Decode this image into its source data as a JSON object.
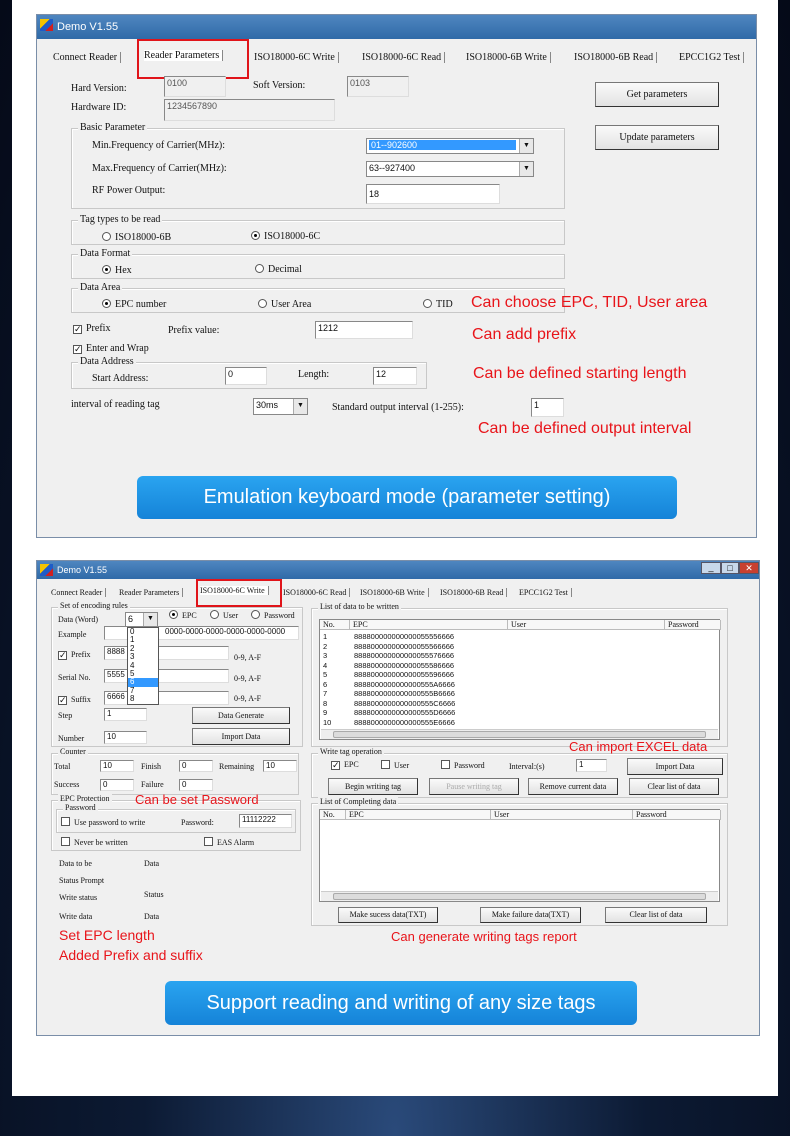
{
  "win1": {
    "title": "Demo V1.55",
    "tabs": [
      "Connect Reader",
      "Reader Parameters",
      "ISO18000-6C Write",
      "ISO18000-6C Read",
      "ISO18000-6B Write",
      "ISO18000-6B Read",
      "EPCC1G2 Test"
    ],
    "active_tab": "Reader Parameters",
    "hard_version_label": "Hard Version:",
    "hard_version": "0100",
    "soft_version_label": "Soft Version:",
    "soft_version": "0103",
    "hardware_id_label": "Hardware ID:",
    "hardware_id": "1234567890",
    "get_parameters": "Get parameters",
    "update_parameters": "Update parameters",
    "basic_parameter": "Basic Parameter",
    "min_freq_label": "Min.Frequency of Carrier(MHz):",
    "min_freq": "01--902600",
    "max_freq_label": "Max.Frequency of Carrier(MHz):",
    "max_freq": "63--927400",
    "rf_power_label": "RF Power Output:",
    "rf_power": "18",
    "tag_types": "Tag types to be read",
    "tag_6b": "ISO18000-6B",
    "tag_6c": "ISO18000-6C",
    "tag_selected": "ISO18000-6C",
    "data_format": "Data Format",
    "hex": "Hex",
    "decimal": "Decimal",
    "format_selected": "Hex",
    "data_area": "Data Area",
    "epc_number": "EPC number",
    "user_area": "User Area",
    "tid": "TID",
    "area_selected": "EPC number",
    "prefix": "Prefix",
    "prefix_checked": true,
    "prefix_value_label": "Prefix value:",
    "prefix_value": "1212",
    "enter_wrap": "Enter and Wrap",
    "enter_wrap_checked": true,
    "data_address": "Data Address",
    "start_address_label": "Start Address:",
    "start_address": "0",
    "length_label": "Length:",
    "length": "12",
    "interval_label": "interval of reading tag",
    "interval": "30ms",
    "std_interval_label": "Standard output interval (1-255):",
    "std_interval": "1"
  },
  "notes1": {
    "area": "Can choose EPC, TID, User area",
    "prefix": "Can add prefix",
    "length": "Can be defined starting length",
    "interval": "Can be defined output interval"
  },
  "banner1": "Emulation keyboard mode (parameter setting)",
  "win2": {
    "title": "Demo V1.55",
    "tabs": [
      "Connect Reader",
      "Reader Parameters",
      "ISO18000-6C Write",
      "ISO18000-6C Read",
      "ISO18000-6B Write",
      "ISO18000-6B Read",
      "EPCC1G2 Test"
    ],
    "active_tab": "ISO18000-6C Write",
    "encoding_rules": "Set of encoding rules",
    "data_word_label": "Data (Word)",
    "data_word": "6",
    "word_options": [
      "0",
      "1",
      "2",
      "3",
      "4",
      "5",
      "6",
      "7",
      "8"
    ],
    "radio_epc": "EPC",
    "radio_user": "User",
    "radio_password": "Password",
    "example_label": "Example",
    "example": "0000-0000-0000-0000-0000-0000",
    "prefix_label": "Prefix",
    "prefix": "8888",
    "serial_label": "Serial No.",
    "serial": "5555",
    "suffix_label": "Suffix",
    "suffix": "6666",
    "hex_hint": "0-9, A-F",
    "step_label": "Step",
    "step": "1",
    "number_label": "Number",
    "number": "10",
    "data_generate": "Data Generate",
    "import_data": "Import Data",
    "counter": "Counter",
    "total_label": "Total",
    "total": "10",
    "finish_label": "Finish",
    "finish": "0",
    "remaining_label": "Remaining",
    "remaining": "10",
    "success_label": "Success",
    "success": "0",
    "failure_label": "Failure",
    "failure": "0",
    "epc_protection": "EPC Protection",
    "password_group": "Password",
    "use_password": "Use password to write",
    "password_label": "Password:",
    "password": "11112222",
    "never_written": "Never be written",
    "eas_alarm": "EAS Alarm",
    "status": [
      [
        "Data to be",
        "Data"
      ],
      [
        "Status Prompt",
        ""
      ],
      [
        "Write status",
        "Status"
      ],
      [
        "Write data",
        "Data"
      ]
    ],
    "list_title": "List of data to be written",
    "columns": [
      "No.",
      "EPC",
      "User",
      "Password"
    ],
    "rows": [
      [
        "1",
        "888800000000000055556666"
      ],
      [
        "2",
        "888800000000000055566666"
      ],
      [
        "3",
        "888800000000000055576666"
      ],
      [
        "4",
        "888800000000000055586666"
      ],
      [
        "5",
        "888800000000000055596666"
      ],
      [
        "6",
        "8888000000000000555A6666"
      ],
      [
        "7",
        "8888000000000000555B6666"
      ],
      [
        "8",
        "8888000000000000555C6666"
      ],
      [
        "9",
        "8888000000000000555D6666"
      ],
      [
        "10",
        "8888000000000000555E6666"
      ]
    ],
    "write_op": "Write tag operation",
    "op_epc": "EPC",
    "op_user": "User",
    "op_password": "Password",
    "interval_label": "Interval:(s)",
    "interval": "1",
    "op_import": "Import Data",
    "begin": "Begin writing tag",
    "pause": "Pause writing tag",
    "remove": "Remove current data",
    "clear": "Clear list of data",
    "completing_title": "List of Completing data",
    "make_success": "Make sucess data(TXT)",
    "make_failure": "Make failure data(TXT)",
    "clear2": "Clear list of data"
  },
  "notes2": {
    "epc_length": "Set EPC length",
    "prefix_suffix": "Added Prefix and suffix",
    "excel": "Can import EXCEL data",
    "password": "Can be set Password",
    "report": "Can generate writing tags report"
  },
  "banner2": "Support reading and writing of any size tags",
  "colors": {
    "annotation": "#e8141a",
    "banner": "#1a8fe0",
    "highlight": "#3399ff"
  }
}
